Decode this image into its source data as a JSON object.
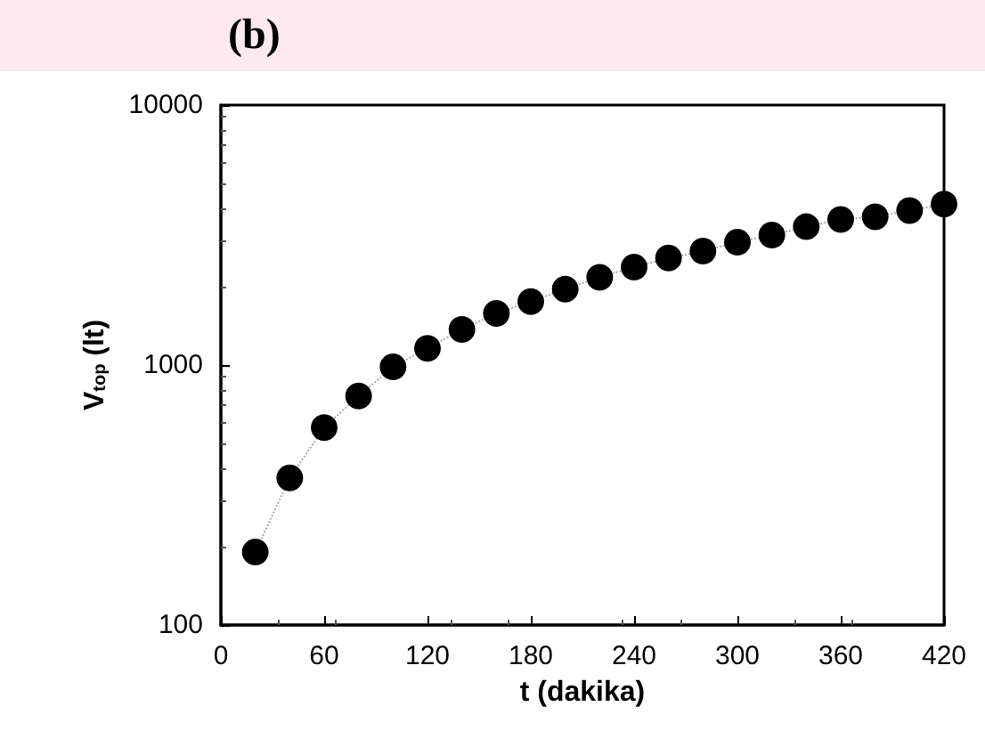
{
  "chart_data": {
    "type": "line",
    "title": "(b)",
    "xlabel": "t (dakika)",
    "ylabel": "V$_{top}$ (lt)",
    "x": [
      20,
      40,
      60,
      80,
      100,
      120,
      140,
      160,
      180,
      200,
      220,
      240,
      260,
      280,
      300,
      320,
      340,
      360,
      380,
      400,
      420
    ],
    "series": [
      {
        "color": "#000000",
        "values": [
          191,
          368,
          575,
          760,
          985,
          1160,
          1370,
          1580,
          1755,
          1960,
          2175,
          2380,
          2580,
          2745,
          2970,
          3160,
          3405,
          3630,
          3720,
          3930,
          4160
        ]
      }
    ],
    "xlim": [
      0,
      420
    ],
    "xticks": [
      0,
      60,
      120,
      180,
      240,
      300,
      360,
      420
    ],
    "ylim": [
      100,
      10000
    ],
    "yticks": [
      100,
      1000,
      10000
    ],
    "log": "y",
    "grid": false,
    "marker": "circle",
    "line_style": "dotted"
  }
}
